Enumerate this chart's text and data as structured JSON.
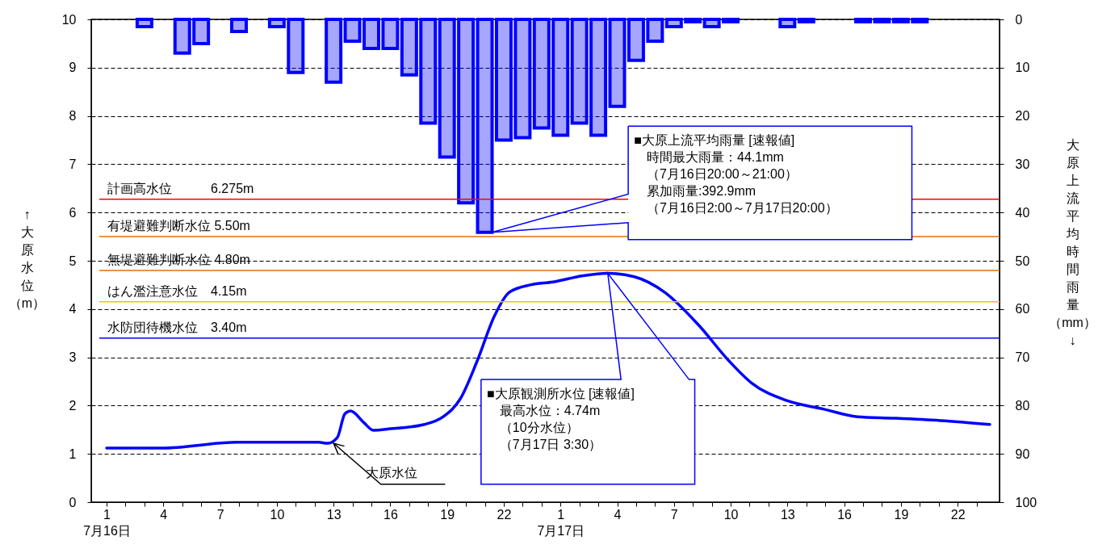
{
  "chart_data": {
    "type": "line",
    "x": [
      "--07-16T03:00",
      "--07-16T04:00",
      "--07-16T05:00",
      "--07-16T06:00",
      "--07-16T07:00",
      "--07-16T08:00",
      "--07-16T09:00",
      "--07-16T10:00",
      "--07-16T11:00",
      "--07-16T12:00",
      "--07-16T13:00",
      "--07-16T14:00",
      "--07-16T15:00",
      "--07-16T16:00",
      "--07-16T17:00",
      "--07-16T18:00",
      "--07-16T19:00",
      "--07-16T20:00",
      "--07-16T21:00",
      "--07-16T22:00",
      "--07-16T23:00",
      "--07-17T00:00",
      "--07-17T01:00",
      "--07-17T02:00",
      "--07-17T03:00",
      "--07-17T04:00",
      "--07-17T05:00",
      "--07-17T06:00",
      "--07-17T07:00",
      "--07-17T08:00",
      "--07-17T09:00",
      "--07-17T10:00",
      "--07-17T11:00",
      "--07-17T12:00",
      "--07-17T13:00",
      "--07-17T14:00",
      "--07-17T15:00",
      "--07-17T16:00",
      "--07-17T17:00",
      "--07-17T18:00",
      "--07-17T19:00",
      "--07-17T20:00"
    ],
    "series": [
      {
        "type": "bar",
        "axis": "y2",
        "color": "#0000ff",
        "values": [
          1.5,
          null,
          7,
          5,
          null,
          2.5,
          null,
          1.5,
          11,
          null,
          13,
          4.5,
          6,
          6,
          11.5,
          21.5,
          28.5,
          38,
          44.1,
          25,
          24.5,
          22.5,
          24,
          21.5,
          24,
          18,
          8.5,
          4.5,
          1.5,
          0.5,
          1.5,
          0.5,
          null,
          null,
          1.5,
          0.5,
          null,
          null,
          0.5,
          0.5,
          0.5,
          0.5
        ]
      },
      {
        "color": "#0000ff",
        "x": [
          "--07-16T01:00",
          "--07-16T03:54",
          "--07-16T07:54",
          "--07-16T12:12",
          "--07-16T12:42",
          "--07-16T13:12",
          "--07-16T13:36",
          "--07-16T13:54",
          "--07-16T14:36",
          "--07-16T15:06",
          "--07-16T16:00",
          "--07-16T17:48",
          "--07-16T18:48",
          "--07-16T19:42",
          "--07-16T20:36",
          "--07-16T21:30",
          "--07-16T22:18",
          "--07-16T23:24",
          "--07-17T00:36",
          "--07-17T02:12",
          "--07-17T03:30",
          "--07-17T04:54",
          "--07-17T06:30",
          "--07-17T08:18",
          "--07-17T09:54",
          "--07-17T11:06",
          "--07-17T13:00",
          "--07-17T14:54",
          "--07-17T16:42",
          "--07-17T18:36",
          "--07-17T21:06",
          "--07-17T23:42"
        ],
        "values": [
          1.12,
          1.12,
          1.24,
          1.24,
          1.22,
          1.34,
          1.83,
          1.89,
          1.65,
          1.49,
          1.52,
          1.61,
          1.77,
          2.14,
          2.93,
          3.85,
          4.35,
          4.5,
          4.56,
          4.69,
          4.74,
          4.67,
          4.35,
          3.67,
          2.93,
          2.47,
          2.1,
          1.93,
          1.77,
          1.74,
          1.69,
          1.61
        ]
      }
    ],
    "xlim": [
      "--07-16T00:24",
      "--07-18T00:00"
    ],
    "xticks": [
      {
        "value": "--07-16T01:00",
        "label": "1\n7月16日"
      },
      {
        "value": "--07-16T02:00",
        "label": null
      },
      {
        "value": "--07-16T03:00",
        "label": null
      },
      {
        "value": "--07-16T04:00",
        "label": "4"
      },
      {
        "value": "--07-16T05:00",
        "label": null
      },
      {
        "value": "--07-16T06:00",
        "label": null
      },
      {
        "value": "--07-16T07:00",
        "label": "7"
      },
      {
        "value": "--07-16T08:00",
        "label": null
      },
      {
        "value": "--07-16T09:00",
        "label": null
      },
      {
        "value": "--07-16T10:00",
        "label": "10"
      },
      {
        "value": "--07-16T11:00",
        "label": null
      },
      {
        "value": "--07-16T12:00",
        "label": null
      },
      {
        "value": "--07-16T13:00",
        "label": "13"
      },
      {
        "value": "--07-16T14:00",
        "label": null
      },
      {
        "value": "--07-16T15:00",
        "label": null
      },
      {
        "value": "--07-16T16:00",
        "label": "16"
      },
      {
        "value": "--07-16T17:00",
        "label": null
      },
      {
        "value": "--07-16T18:00",
        "label": null
      },
      {
        "value": "--07-16T19:00",
        "label": "19"
      },
      {
        "value": "--07-16T20:00",
        "label": null
      },
      {
        "value": "--07-16T21:00",
        "label": null
      },
      {
        "value": "--07-16T22:00",
        "label": "22"
      },
      {
        "value": "--07-16T23:00",
        "label": null
      },
      {
        "value": "--07-17T00:00",
        "label": null
      },
      {
        "value": "--07-17T01:00",
        "label": "1\n7月17日"
      },
      {
        "value": "--07-17T02:00",
        "label": null
      },
      {
        "value": "--07-17T03:00",
        "label": null
      },
      {
        "value": "--07-17T04:00",
        "label": "4"
      },
      {
        "value": "--07-17T05:00",
        "label": null
      },
      {
        "value": "--07-17T06:00",
        "label": null
      },
      {
        "value": "--07-17T07:00",
        "label": "7"
      },
      {
        "value": "--07-17T08:00",
        "label": null
      },
      {
        "value": "--07-17T09:00",
        "label": null
      },
      {
        "value": "--07-17T10:00",
        "label": "10"
      },
      {
        "value": "--07-17T11:00",
        "label": null
      },
      {
        "value": "--07-17T12:00",
        "label": null
      },
      {
        "value": "--07-17T13:00",
        "label": "13"
      },
      {
        "value": "--07-17T14:00",
        "label": null
      },
      {
        "value": "--07-17T15:00",
        "label": null
      },
      {
        "value": "--07-17T16:00",
        "label": "16"
      },
      {
        "value": "--07-17T17:00",
        "label": null
      },
      {
        "value": "--07-17T18:00",
        "label": null
      },
      {
        "value": "--07-17T19:00",
        "label": "19"
      },
      {
        "value": "--07-17T20:00",
        "label": null
      },
      {
        "value": "--07-17T21:00",
        "label": null
      },
      {
        "value": "--07-17T22:00",
        "label": "22"
      },
      {
        "value": "--07-17T23:00",
        "label": null
      }
    ],
    "ylim": [
      0,
      10
    ],
    "yticks": [
      0,
      1,
      2,
      3,
      4,
      5,
      6,
      7,
      8,
      9,
      10
    ],
    "y2lim": [
      100,
      0
    ],
    "y2ticks": [
      0,
      10,
      20,
      30,
      40,
      50,
      60,
      70,
      80,
      90,
      100
    ],
    "ylabel": "↑大原水位（m）",
    "y2label": "大原上流平均時間雨量（mm）↓",
    "grid": "y",
    "ref_lines": [
      {
        "axis": "y",
        "value": 6.275,
        "label": "計画高水位　　　6.275m",
        "color": "#ff0000"
      },
      {
        "axis": "y",
        "value": 5.5,
        "label": "有堤避難判断水位 5.50m",
        "color": "#e46c0a"
      },
      {
        "axis": "y",
        "value": 4.8,
        "label": "無堤避難判断水位 4.80m",
        "color": "#e46c0a"
      },
      {
        "axis": "y",
        "value": 4.15,
        "label": "はん濫注意水位　4.15m",
        "color": "#ffc000"
      },
      {
        "axis": "y",
        "value": 3.4,
        "label": "水防団待機水位　3.40m",
        "color": "#0000ff"
      }
    ],
    "annotations": [
      "■大原上流平均雨量 [速報値]",
      "時間最大雨量：44.1mm",
      "（7月16日20:00～21:00）",
      "累加雨量:392.9mm",
      "（7月16日2:00～7月17日20:00）",
      "■大原観測所水位 [速報値]",
      "最高水位：4.74m",
      "（10分水位）",
      "（7月17日 3:30）",
      "大原水位"
    ]
  }
}
